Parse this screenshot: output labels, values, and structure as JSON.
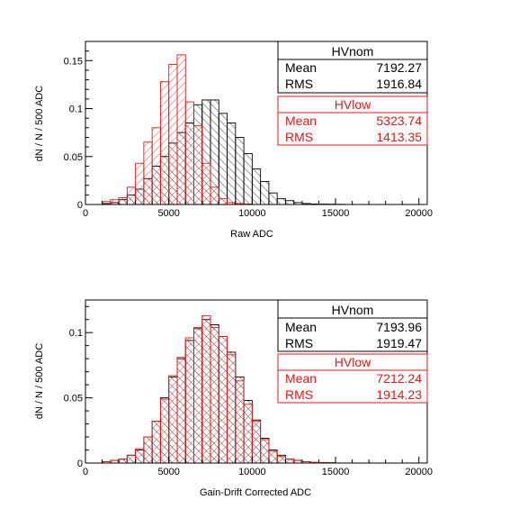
{
  "chart_data": [
    {
      "type": "histogram",
      "title": "",
      "xlabel": "Raw ADC",
      "ylabel": "dN / N / 500 ADC",
      "xlim": [
        0,
        20500
      ],
      "ylim": [
        0,
        0.17
      ],
      "bin_width": 500,
      "x_ticks": [
        "0",
        "5000",
        "10000",
        "15000",
        "20000"
      ],
      "y_ticks": [
        "0",
        "0.05",
        "0.1",
        "0.15"
      ],
      "grid": false,
      "series": [
        {
          "name": "HVnom",
          "color": "#000000",
          "fill": "hatch-nw",
          "bin_starts": [
            1000,
            1500,
            2000,
            2500,
            3000,
            3500,
            4000,
            4500,
            5000,
            5500,
            6000,
            6500,
            7000,
            7500,
            8000,
            8500,
            9000,
            9500,
            10000,
            10500,
            11000,
            11500,
            12000,
            12500,
            13000,
            13500,
            14000,
            14500,
            15000
          ],
          "values": [
            0.001,
            0.002,
            0.005,
            0.01,
            0.016,
            0.027,
            0.04,
            0.05,
            0.064,
            0.075,
            0.085,
            0.104,
            0.109,
            0.109,
            0.095,
            0.085,
            0.07,
            0.053,
            0.037,
            0.024,
            0.012,
            0.006,
            0.004,
            0.002,
            0.001,
            0.0005,
            0.0004,
            0.0003,
            0.0002
          ],
          "stats": {
            "title": "HVnom",
            "mean_label": "Mean",
            "mean": "7192.27",
            "rms_label": "RMS",
            "rms": "1916.84"
          }
        },
        {
          "name": "HVlow",
          "color": "#e0191a",
          "fill": "hatch-ne",
          "bin_starts": [
            1000,
            1500,
            2000,
            2500,
            3000,
            3500,
            4000,
            4500,
            5000,
            5500,
            6000,
            6500,
            7000,
            7500,
            8000,
            8500,
            9000,
            9500
          ],
          "values": [
            0.003,
            0.005,
            0.007,
            0.018,
            0.043,
            0.065,
            0.08,
            0.128,
            0.146,
            0.156,
            0.107,
            0.082,
            0.043,
            0.018,
            0.006,
            0.002,
            0.001,
            0.0005
          ],
          "stats": {
            "title": "HVlow",
            "mean_label": "Mean",
            "mean": "5323.74",
            "rms_label": "RMS",
            "rms": "1413.35"
          }
        }
      ]
    },
    {
      "type": "histogram",
      "title": "",
      "xlabel": "Gain-Drift Corrected ADC",
      "ylabel": "dN / N / 500 ADC",
      "xlim": [
        0,
        20500
      ],
      "ylim": [
        0,
        0.125
      ],
      "bin_width": 500,
      "x_ticks": [
        "0",
        "5000",
        "10000",
        "15000",
        "20000"
      ],
      "y_ticks": [
        "0",
        "0.05",
        "0.1"
      ],
      "grid": false,
      "series": [
        {
          "name": "HVnom",
          "color": "#000000",
          "fill": "hatch-nw",
          "bin_starts": [
            1000,
            1500,
            2000,
            2500,
            3000,
            3500,
            4000,
            4500,
            5000,
            5500,
            6000,
            6500,
            7000,
            7500,
            8000,
            8500,
            9000,
            9500,
            10000,
            10500,
            11000,
            11500,
            12000,
            12500,
            13000,
            13500,
            14000,
            14500
          ],
          "values": [
            0.001,
            0.002,
            0.003,
            0.006,
            0.01,
            0.02,
            0.032,
            0.05,
            0.066,
            0.08,
            0.094,
            0.103,
            0.11,
            0.106,
            0.097,
            0.085,
            0.066,
            0.048,
            0.033,
            0.019,
            0.01,
            0.006,
            0.003,
            0.002,
            0.001,
            0.0005,
            0.0004,
            0.0002
          ],
          "stats": {
            "title": "HVnom",
            "mean_label": "Mean",
            "mean": "7193.96",
            "rms_label": "RMS",
            "rms": "1919.47"
          }
        },
        {
          "name": "HVlow",
          "color": "#e0191a",
          "fill": "hatch-ne",
          "bin_starts": [
            1000,
            1500,
            2000,
            2500,
            3000,
            3500,
            4000,
            4500,
            5000,
            5500,
            6000,
            6500,
            7000,
            7500,
            8000,
            8500,
            9000,
            9500,
            10000,
            10500,
            11000,
            11500,
            12000,
            12500,
            13000,
            13500,
            14000,
            14500
          ],
          "values": [
            0.001,
            0.002,
            0.003,
            0.006,
            0.011,
            0.02,
            0.032,
            0.049,
            0.067,
            0.081,
            0.096,
            0.104,
            0.113,
            0.104,
            0.097,
            0.083,
            0.063,
            0.045,
            0.032,
            0.018,
            0.009,
            0.005,
            0.003,
            0.002,
            0.001,
            0.0005,
            0.0004,
            0.0002
          ],
          "stats": {
            "title": "HVlow",
            "mean_label": "Mean",
            "mean": "7212.24",
            "rms_label": "RMS",
            "rms": "1914.23"
          }
        }
      ]
    }
  ]
}
